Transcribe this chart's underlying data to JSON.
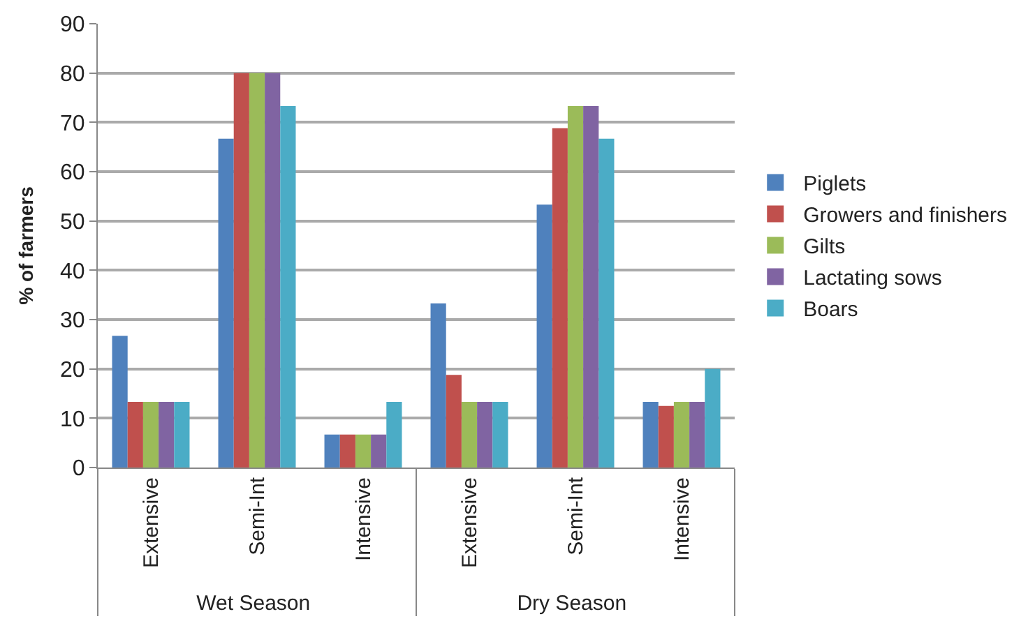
{
  "chart_data": {
    "type": "bar",
    "ylabel": "% of farmers",
    "categories": [
      "Extensive",
      "Semi-Int",
      "Intensive",
      "Extensive",
      "Semi-Int",
      "Intensive"
    ],
    "annotations": [
      "Wet Season",
      "Dry Season"
    ],
    "series": [
      {
        "name": "Piglets",
        "color": "#4f81bd",
        "values": [
          26.7,
          66.7,
          6.7,
          33.3,
          53.3,
          13.3
        ]
      },
      {
        "name": "Growers and finishers",
        "color": "#c0504d",
        "values": [
          13.3,
          80,
          6.7,
          18.8,
          68.8,
          12.5
        ]
      },
      {
        "name": "Gilts",
        "color": "#9bbb59",
        "values": [
          13.3,
          80,
          6.7,
          13.3,
          73.3,
          13.3
        ]
      },
      {
        "name": "Lactating sows",
        "color": "#8064a2",
        "values": [
          13.3,
          80,
          6.7,
          13.3,
          73.3,
          13.3
        ]
      },
      {
        "name": "Boars",
        "color": "#4bacc6",
        "values": [
          13.3,
          73.3,
          13.3,
          13.3,
          66.7,
          20
        ]
      }
    ],
    "ylim": [
      0,
      90
    ],
    "yticks": [
      0,
      10,
      20,
      30,
      40,
      50,
      60,
      70,
      80,
      90
    ],
    "grid": "y",
    "legend": "right"
  }
}
